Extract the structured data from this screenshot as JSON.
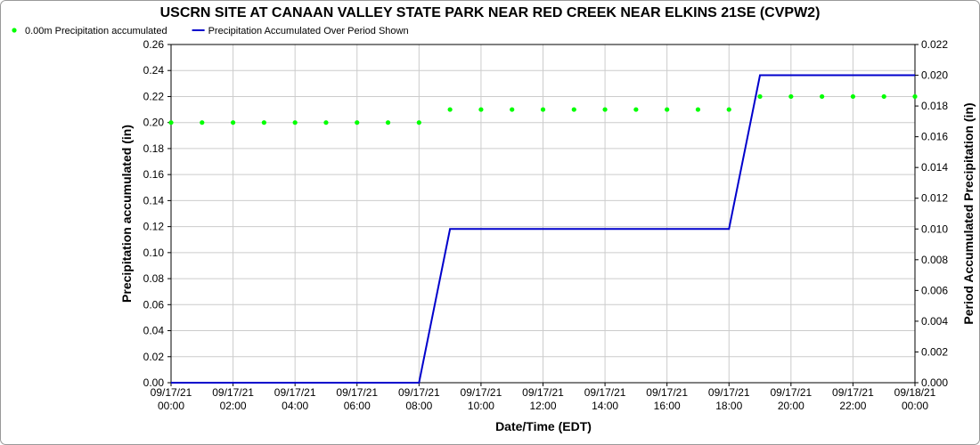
{
  "chart_data": {
    "type": "line",
    "title": "USCRN SITE AT CANAAN VALLEY STATE PARK NEAR RED CREEK NEAR ELKINS 21SE (CVPW2)",
    "x_label": "Date/Time (EDT)",
    "y_label": "Precipitation accumulated (in)",
    "y2_label": "Period Accumulated Precipitation (in)",
    "categories": [
      "09/17/21 00:00",
      null,
      "09/17/21 02:00",
      null,
      "09/17/21 04:00",
      null,
      "09/17/21 06:00",
      null,
      "09/17/21 08:00",
      null,
      "09/17/21 10:00",
      null,
      "09/17/21 12:00",
      null,
      "09/17/21 14:00",
      null,
      "09/17/21 16:00",
      null,
      "09/17/21 18:00",
      null,
      "09/17/21 20:00",
      null,
      "09/17/21 22:00",
      null,
      "09/18/21 00:00"
    ],
    "series": [
      {
        "name": "0.00m Precipitation accumulated",
        "color": "#00ff00",
        "mode": "markers",
        "values": [
          0.2,
          0.2,
          0.2,
          0.2,
          0.2,
          0.2,
          0.2,
          0.2,
          0.2,
          0.21,
          0.21,
          0.21,
          0.21,
          0.21,
          0.21,
          0.21,
          0.21,
          0.21,
          0.21,
          0.22,
          0.22,
          0.22,
          0.22,
          0.22,
          0.22
        ]
      },
      {
        "name": "Precipitation Accumulated Over Period Shown",
        "color": "#0000cc",
        "mode": "lines",
        "axis": "y2",
        "values": [
          0,
          0,
          0,
          0,
          0,
          0,
          0,
          0,
          0,
          0.01,
          0.01,
          0.01,
          0.01,
          0.01,
          0.01,
          0.01,
          0.01,
          0.01,
          0.01,
          0.02,
          0.02,
          0.02,
          0.02,
          0.02,
          0.02
        ]
      }
    ],
    "ylim": [
      0,
      0.26
    ],
    "yticks": [
      {
        "value": 0,
        "label": "0.00"
      },
      {
        "value": 0.02,
        "label": "0.02"
      },
      {
        "value": 0.04,
        "label": "0.04"
      },
      {
        "value": 0.06,
        "label": "0.06"
      },
      {
        "value": 0.08,
        "label": "0.08"
      },
      {
        "value": 0.1,
        "label": "0.10"
      },
      {
        "value": 0.12,
        "label": "0.12"
      },
      {
        "value": 0.14,
        "label": "0.14"
      },
      {
        "value": 0.16,
        "label": "0.16"
      },
      {
        "value": 0.18,
        "label": "0.18"
      },
      {
        "value": 0.2,
        "label": "0.20"
      },
      {
        "value": 0.22,
        "label": "0.22"
      },
      {
        "value": 0.24,
        "label": "0.24"
      },
      {
        "value": 0.26,
        "label": "0.26"
      }
    ],
    "y2lim": [
      0,
      0.022
    ],
    "y2ticks": [
      {
        "value": 0,
        "label": "0.000"
      },
      {
        "value": 0.002,
        "label": "0.002"
      },
      {
        "value": 0.004,
        "label": "0.004"
      },
      {
        "value": 0.006,
        "label": "0.006"
      },
      {
        "value": 0.008,
        "label": "0.008"
      },
      {
        "value": 0.01,
        "label": "0.010"
      },
      {
        "value": 0.012,
        "label": "0.012"
      },
      {
        "value": 0.014,
        "label": "0.014"
      },
      {
        "value": 0.016,
        "label": "0.016"
      },
      {
        "value": 0.018,
        "label": "0.018"
      },
      {
        "value": 0.02,
        "label": "0.020"
      },
      {
        "value": 0.022,
        "label": "0.022"
      }
    ],
    "grid": true,
    "legend": "top-left"
  }
}
